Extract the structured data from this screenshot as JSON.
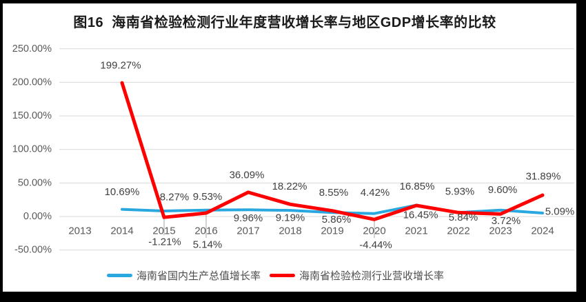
{
  "chart_data": {
    "type": "line",
    "title": "图16  海南省检验检测行业年度营收增长率与地区GDP增长率的比较",
    "xlabel": "",
    "ylabel": "",
    "categories": [
      "2013",
      "2014",
      "2015",
      "2016",
      "2017",
      "2018",
      "2019",
      "2020",
      "2021",
      "2022",
      "2023",
      "2024"
    ],
    "ylim": [
      -50,
      250
    ],
    "grid": true,
    "legend_position": "bottom",
    "background_color": "#FFFFFF",
    "frame_color": "#000000",
    "grid_color": "#D9D9D9",
    "tick_color": "#595959",
    "label_color": "#404040",
    "leader_color": "#A6A6A6",
    "yticks": [
      {
        "value": 250,
        "label": "250.00%"
      },
      {
        "value": 200,
        "label": "200.00%"
      },
      {
        "value": 150,
        "label": "150.00%"
      },
      {
        "value": 100,
        "label": "100.00%"
      },
      {
        "value": 50,
        "label": "50.00%"
      },
      {
        "value": 0,
        "label": "0.00%"
      },
      {
        "value": -50,
        "label": "-50.00%"
      }
    ],
    "series": [
      {
        "name": "海南省国内生产总值增长率",
        "color": "#29A7DF",
        "stroke_width": 4,
        "values": [
          null,
          10.69,
          8.27,
          9.53,
          9.96,
          9.19,
          5.86,
          4.42,
          16.85,
          5.93,
          9.6,
          5.09
        ],
        "labels": [
          null,
          "10.69%",
          "8.27%",
          "9.53%",
          "9.96%",
          "9.19%",
          "5.86%",
          "4.42%",
          "16.85%",
          "5.93%",
          "9.60%",
          "5.09%"
        ],
        "label_offsets": [
          null,
          [
            0,
            -25
          ],
          [
            15,
            -20
          ],
          [
            2,
            -19
          ],
          [
            0,
            12
          ],
          [
            0,
            11
          ],
          [
            6,
            10
          ],
          [
            1,
            -30
          ],
          [
            1,
            -27
          ],
          [
            2,
            -30
          ],
          [
            3,
            -29
          ],
          [
            25,
            -2
          ]
        ],
        "leader_lines": [
          false,
          false,
          false,
          false,
          false,
          false,
          false,
          false,
          false,
          false,
          false,
          false
        ]
      },
      {
        "name": "海南省检验检测行业营收增长率",
        "color": "#FF0000",
        "stroke_width": 5,
        "values": [
          null,
          199.27,
          -1.21,
          5.14,
          36.09,
          18.22,
          8.55,
          -4.44,
          16.45,
          5.84,
          3.72,
          31.89
        ],
        "labels": [
          null,
          "199.27%",
          "-1.21%",
          "5.14%",
          "36.09%",
          "18.22%",
          "8.55%",
          "-4.44%",
          "16.45%",
          "5.84%",
          "3.72%",
          "31.89%"
        ],
        "label_offsets": [
          null,
          [
            -2,
            -25
          ],
          [
            1,
            36
          ],
          [
            2,
            46
          ],
          [
            -2,
            -25
          ],
          [
            -1,
            -26
          ],
          [
            2,
            -26
          ],
          [
            2,
            37
          ],
          [
            6,
            14
          ],
          [
            7,
            7
          ],
          [
            8,
            10
          ],
          [
            1,
            -27
          ]
        ],
        "leader_lines": [
          false,
          false,
          true,
          true,
          false,
          false,
          false,
          true,
          false,
          false,
          false,
          false
        ]
      }
    ]
  }
}
